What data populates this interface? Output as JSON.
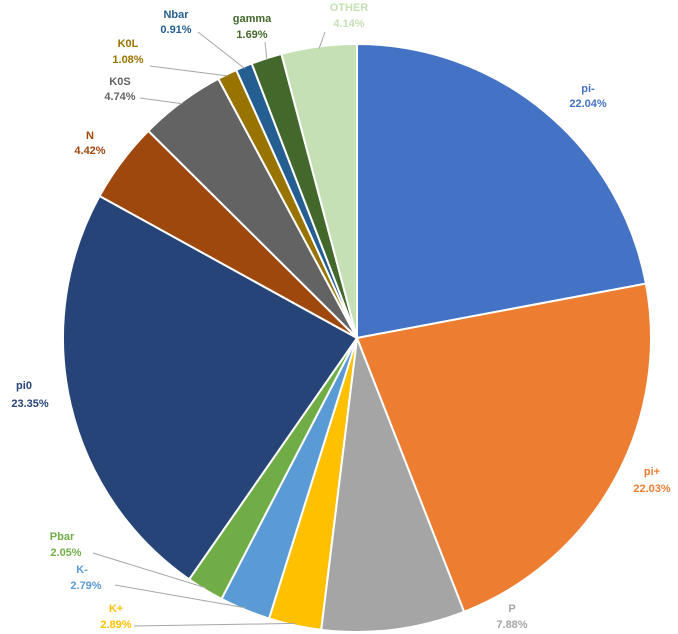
{
  "chart_data": {
    "type": "pie",
    "title": "",
    "legend": "none",
    "slices": [
      {
        "name": "pi-",
        "value": 22.04,
        "label": "22.04%",
        "color": "#4472C4"
      },
      {
        "name": "pi+",
        "value": 22.03,
        "label": "22.03%",
        "color": "#ED7D31"
      },
      {
        "name": "P",
        "value": 7.88,
        "label": "7.88%",
        "color": "#A5A5A5"
      },
      {
        "name": "K+",
        "value": 2.89,
        "label": "2.89%",
        "color": "#FFC000"
      },
      {
        "name": "K-",
        "value": 2.79,
        "label": "2.79%",
        "color": "#5B9BD5"
      },
      {
        "name": "Pbar",
        "value": 2.05,
        "label": "2.05%",
        "color": "#70AD47"
      },
      {
        "name": "pi0",
        "value": 23.35,
        "label": "23.35%",
        "color": "#264478"
      },
      {
        "name": "N",
        "value": 4.42,
        "label": "4.42%",
        "color": "#9E480E"
      },
      {
        "name": "K0S",
        "value": 4.74,
        "label": "4.74%",
        "color": "#636363"
      },
      {
        "name": "K0L",
        "value": 1.08,
        "label": "1.08%",
        "color": "#997300"
      },
      {
        "name": "Nbar",
        "value": 0.91,
        "label": "0.91%",
        "color": "#255E91"
      },
      {
        "name": "gamma",
        "value": 1.69,
        "label": "1.69%",
        "color": "#43682B"
      },
      {
        "name": "OTHER",
        "value": 4.14,
        "label": "4.14%",
        "color": "#C5E0B4"
      }
    ]
  }
}
